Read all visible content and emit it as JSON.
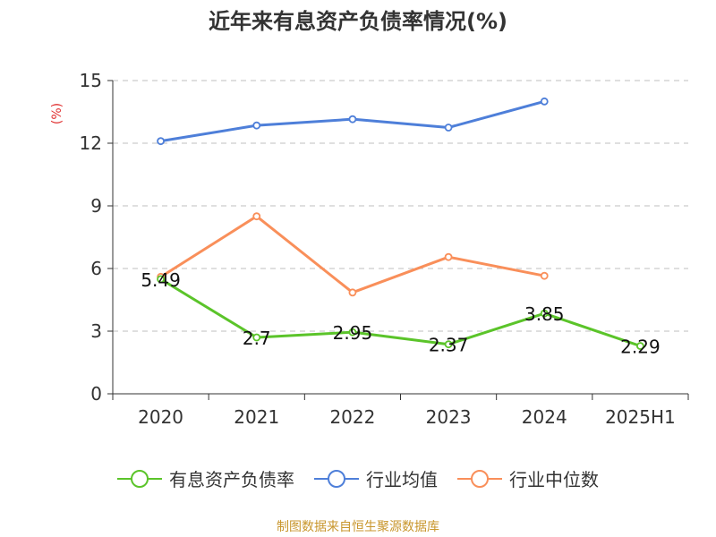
{
  "chart_data": {
    "type": "line",
    "title": "近年来有息资产负债率情况(%)",
    "ylabel": "(%)",
    "categories": [
      "2020",
      "2021",
      "2022",
      "2023",
      "2024",
      "2025H1"
    ],
    "ylim": [
      0,
      15
    ],
    "yticks": [
      "0",
      "3",
      "6",
      "9",
      "12",
      "15"
    ],
    "grid": true,
    "legend_position": "bottom",
    "series": [
      {
        "name": "有息资产负债率",
        "color": "#5bc42a",
        "values": [
          5.49,
          2.7,
          2.95,
          2.37,
          3.85,
          2.29
        ],
        "labels": [
          "5.49",
          "2.7",
          "2.95",
          "2.37",
          "3.85",
          "2.29"
        ]
      },
      {
        "name": "行业均值",
        "color": "#4e7fd9",
        "values": [
          12.1,
          12.85,
          13.15,
          12.75,
          14.0,
          null
        ]
      },
      {
        "name": "行业中位数",
        "color": "#f98f5a",
        "values": [
          5.6,
          8.5,
          4.85,
          6.55,
          5.65,
          null
        ]
      }
    ]
  },
  "source": "制图数据来自恒生聚源数据库"
}
